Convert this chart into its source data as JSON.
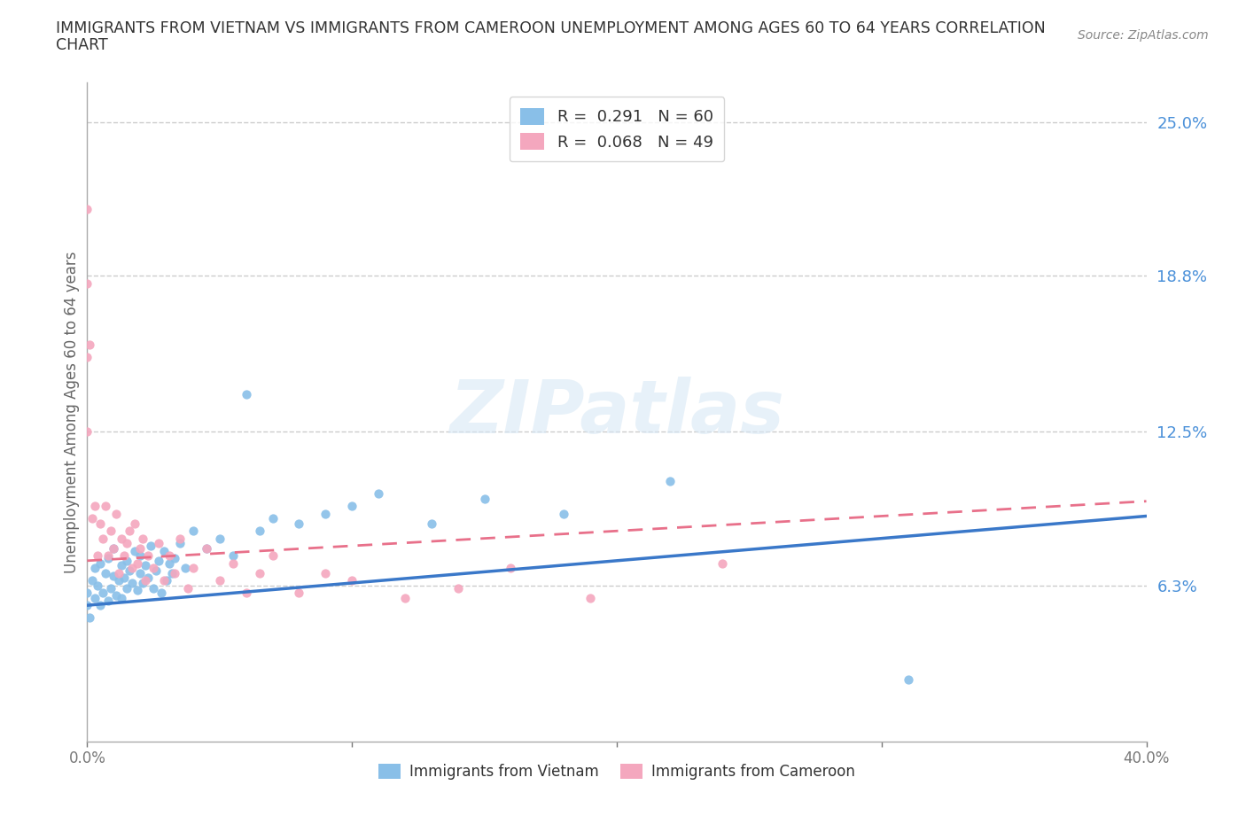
{
  "title_line1": "IMMIGRANTS FROM VIETNAM VS IMMIGRANTS FROM CAMEROON UNEMPLOYMENT AMONG AGES 60 TO 64 YEARS CORRELATION",
  "title_line2": "CHART",
  "source": "Source: ZipAtlas.com",
  "ylabel": "Unemployment Among Ages 60 to 64 years",
  "xlim": [
    0.0,
    0.4
  ],
  "ylim": [
    0.0,
    0.266
  ],
  "ytick_values": [
    0.063,
    0.125,
    0.188,
    0.25
  ],
  "ytick_labels": [
    "6.3%",
    "12.5%",
    "18.8%",
    "25.0%"
  ],
  "vietnam_color": "#89bfe8",
  "cameroon_color": "#f4a7be",
  "vietnam_line_color": "#3a78c9",
  "cameroon_line_color": "#e8708a",
  "watermark": "ZIPatlas",
  "legend_R_vietnam": "R =  0.291",
  "legend_N_vietnam": "N = 60",
  "legend_R_cameroon": "R =  0.068",
  "legend_N_cameroon": "N = 49",
  "vietnam_slope": 0.09,
  "vietnam_intercept": 0.055,
  "cameroon_slope": 0.06,
  "cameroon_intercept": 0.073,
  "background_color": "#ffffff",
  "grid_color": "#cccccc",
  "label_color": "#4a90d9",
  "vietnam_x": [
    0.0,
    0.0,
    0.001,
    0.002,
    0.003,
    0.003,
    0.004,
    0.005,
    0.005,
    0.006,
    0.007,
    0.008,
    0.008,
    0.009,
    0.01,
    0.01,
    0.011,
    0.012,
    0.013,
    0.013,
    0.014,
    0.015,
    0.015,
    0.016,
    0.017,
    0.018,
    0.019,
    0.02,
    0.02,
    0.021,
    0.022,
    0.023,
    0.024,
    0.025,
    0.026,
    0.027,
    0.028,
    0.029,
    0.03,
    0.031,
    0.032,
    0.033,
    0.035,
    0.037,
    0.04,
    0.045,
    0.05,
    0.055,
    0.06,
    0.065,
    0.07,
    0.08,
    0.09,
    0.1,
    0.11,
    0.13,
    0.15,
    0.18,
    0.22,
    0.31
  ],
  "vietnam_y": [
    0.06,
    0.055,
    0.05,
    0.065,
    0.058,
    0.07,
    0.063,
    0.055,
    0.072,
    0.06,
    0.068,
    0.057,
    0.074,
    0.062,
    0.067,
    0.078,
    0.059,
    0.065,
    0.071,
    0.058,
    0.066,
    0.073,
    0.062,
    0.069,
    0.064,
    0.077,
    0.061,
    0.068,
    0.075,
    0.064,
    0.071,
    0.066,
    0.079,
    0.062,
    0.069,
    0.073,
    0.06,
    0.077,
    0.065,
    0.072,
    0.068,
    0.074,
    0.08,
    0.07,
    0.085,
    0.078,
    0.082,
    0.075,
    0.14,
    0.085,
    0.09,
    0.088,
    0.092,
    0.095,
    0.1,
    0.088,
    0.098,
    0.092,
    0.105,
    0.025
  ],
  "cameroon_x": [
    0.0,
    0.0,
    0.0,
    0.0,
    0.001,
    0.002,
    0.003,
    0.004,
    0.005,
    0.006,
    0.007,
    0.008,
    0.009,
    0.01,
    0.011,
    0.012,
    0.013,
    0.014,
    0.015,
    0.016,
    0.017,
    0.018,
    0.019,
    0.02,
    0.021,
    0.022,
    0.023,
    0.025,
    0.027,
    0.029,
    0.031,
    0.033,
    0.035,
    0.038,
    0.04,
    0.045,
    0.05,
    0.055,
    0.06,
    0.065,
    0.07,
    0.08,
    0.09,
    0.1,
    0.12,
    0.14,
    0.16,
    0.19,
    0.24
  ],
  "cameroon_y": [
    0.215,
    0.185,
    0.155,
    0.125,
    0.16,
    0.09,
    0.095,
    0.075,
    0.088,
    0.082,
    0.095,
    0.075,
    0.085,
    0.078,
    0.092,
    0.068,
    0.082,
    0.075,
    0.08,
    0.085,
    0.07,
    0.088,
    0.072,
    0.078,
    0.082,
    0.065,
    0.075,
    0.07,
    0.08,
    0.065,
    0.075,
    0.068,
    0.082,
    0.062,
    0.07,
    0.078,
    0.065,
    0.072,
    0.06,
    0.068,
    0.075,
    0.06,
    0.068,
    0.065,
    0.058,
    0.062,
    0.07,
    0.058,
    0.072
  ]
}
